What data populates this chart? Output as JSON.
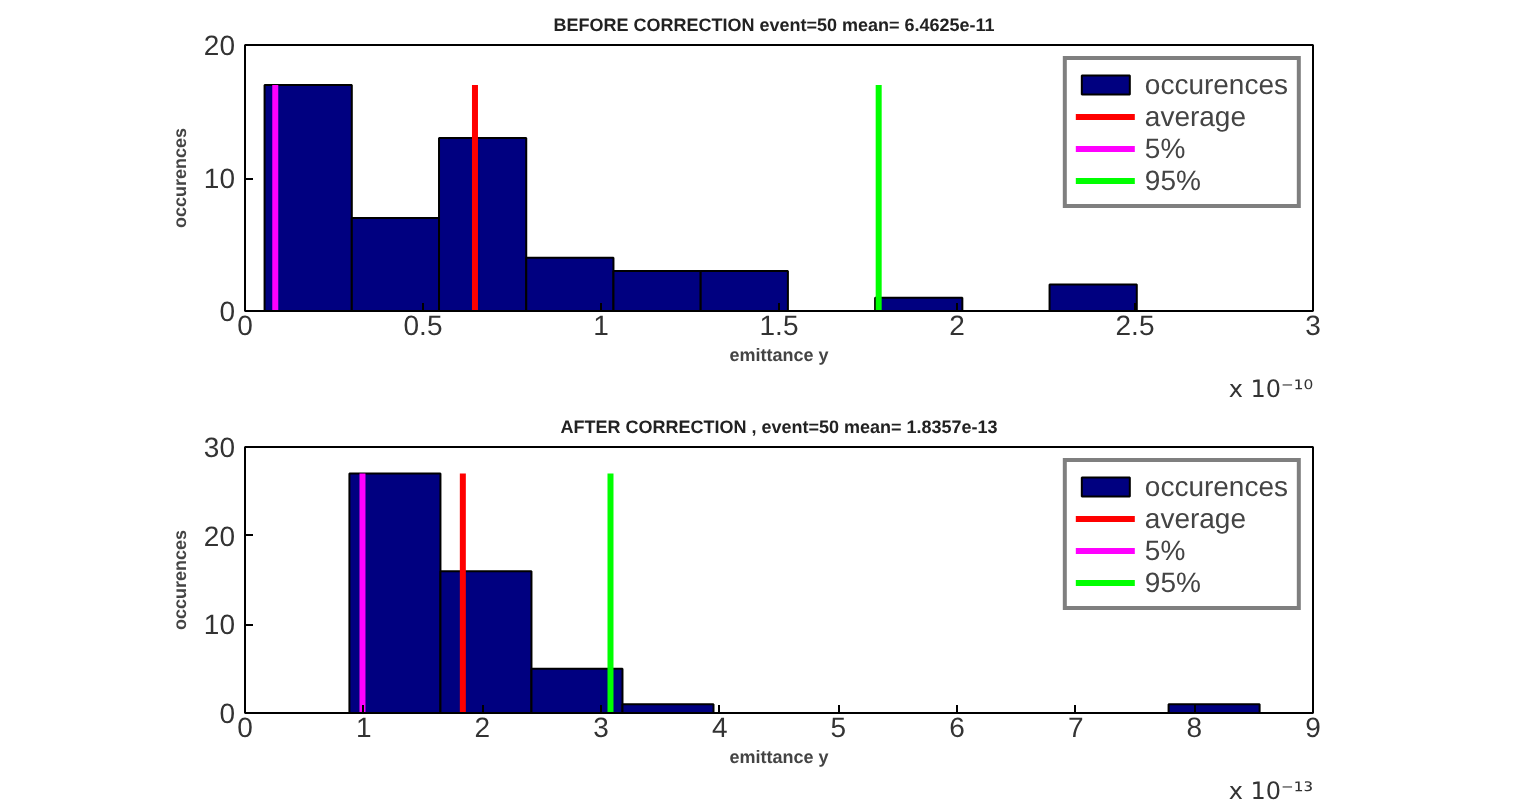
{
  "chart_data": [
    {
      "type": "histogram",
      "title": "BEFORE   CORRECTION event=50 mean= 6.4625e-11",
      "xlabel": "emittance y",
      "ylabel": "occurences",
      "bins": [
        0.055,
        0.3,
        0.545,
        0.79,
        1.035,
        1.28,
        1.525,
        1.77,
        2.015,
        2.26,
        2.505
      ],
      "series": [
        {
          "name": "occurences",
          "color": "#000080",
          "values": [
            17,
            7,
            13,
            4,
            3,
            3,
            0,
            1,
            0,
            2
          ]
        },
        {
          "type": "line",
          "name": "average",
          "color": "#ff0000",
          "x": [
            0.646,
            0.646
          ],
          "values": [
            0,
            17
          ]
        },
        {
          "type": "line",
          "name": "5%",
          "color": "#ff00ff",
          "x": [
            0.085,
            0.085
          ],
          "values": [
            0,
            17
          ]
        },
        {
          "type": "line",
          "name": "95%",
          "color": "#00ff00",
          "x": [
            1.78,
            1.78
          ],
          "values": [
            0,
            17
          ]
        }
      ],
      "xlim": [
        0,
        3
      ],
      "xticks": [
        0,
        0.5,
        1,
        1.5,
        2,
        2.5,
        3
      ],
      "ylim": [
        0,
        20
      ],
      "yticks": [
        0,
        10,
        20
      ],
      "annotations": [
        "x 10⁻¹⁰"
      ],
      "legend": "top right"
    },
    {
      "type": "histogram",
      "title": "AFTER CORRECTION , event=50 mean= 1.8357e-13",
      "xlabel": "emittance y",
      "ylabel": "occurences",
      "bins": [
        0.88,
        1.647,
        2.414,
        3.181,
        3.948,
        4.715,
        5.482,
        6.249,
        7.016,
        7.783,
        8.55
      ],
      "series": [
        {
          "name": "occurences",
          "color": "#000080",
          "values": [
            27,
            16,
            5,
            1,
            0,
            0,
            0,
            0,
            0,
            1
          ]
        },
        {
          "type": "line",
          "name": "average",
          "color": "#ff0000",
          "x": [
            1.8357,
            1.8357
          ],
          "values": [
            0,
            27
          ]
        },
        {
          "type": "line",
          "name": "5%",
          "color": "#ff00ff",
          "x": [
            0.99,
            0.99
          ],
          "values": [
            0,
            27
          ]
        },
        {
          "type": "line",
          "name": "95%",
          "color": "#00ff00",
          "x": [
            3.08,
            3.08
          ],
          "values": [
            0,
            27
          ]
        }
      ],
      "xlim": [
        0,
        9
      ],
      "xticks": [
        0,
        1,
        2,
        3,
        4,
        5,
        6,
        7,
        8,
        9
      ],
      "ylim": [
        0,
        30
      ],
      "yticks": [
        0,
        10,
        20,
        30
      ],
      "annotations": [
        "x 10⁻¹³"
      ],
      "legend": "top right"
    }
  ]
}
